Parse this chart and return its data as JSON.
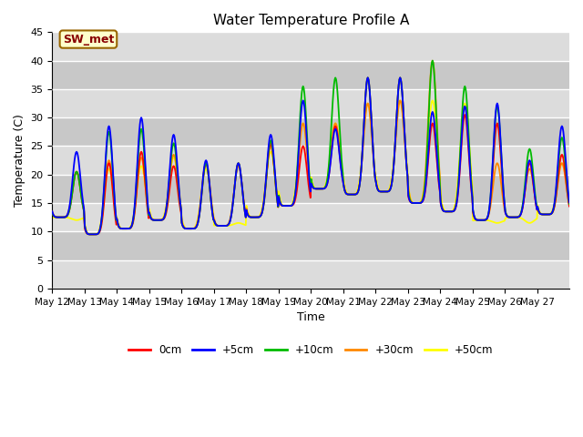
{
  "title": "Water Temperature Profile A",
  "xlabel": "Time",
  "ylabel": "Temperature (C)",
  "ylim": [
    0,
    45
  ],
  "yticks": [
    0,
    5,
    10,
    15,
    20,
    25,
    30,
    35,
    40,
    45
  ],
  "xtick_labels": [
    "May 12",
    "May 13",
    "May 14",
    "May 15",
    "May 16",
    "May 17",
    "May 18",
    "May 19",
    "May 20",
    "May 21",
    "May 22",
    "May 23",
    "May 24",
    "May 25",
    "May 26",
    "May 27"
  ],
  "annotation_text": "SW_met",
  "annotation_facecolor": "#FFFFCC",
  "annotation_edgecolor": "#996600",
  "annotation_textcolor": "#880000",
  "colors": {
    "0cm": "#FF0000",
    "+5cm": "#0000FF",
    "+10cm": "#00BB00",
    "+30cm": "#FF8800",
    "+50cm": "#FFFF00"
  },
  "bg_color": "#DCDCDC",
  "grid_color": "#FFFFFF",
  "line_width": 1.3,
  "peak_values": {
    "day_peaks_0cm": [
      20.5,
      22.0,
      24.0,
      21.5,
      22.0,
      22.0,
      25.5,
      25.0,
      28.5,
      37.0,
      37.0,
      29.0,
      30.5,
      29.0,
      22.0,
      23.5
    ],
    "day_peaks_5cm": [
      24.0,
      28.5,
      30.0,
      27.0,
      22.5,
      22.0,
      27.0,
      33.0,
      28.0,
      37.0,
      37.0,
      31.0,
      32.0,
      32.5,
      22.5,
      28.5
    ],
    "day_peaks_10cm": [
      20.5,
      27.5,
      28.0,
      25.5,
      22.0,
      22.0,
      26.0,
      35.5,
      37.0,
      37.0,
      37.0,
      40.0,
      35.5,
      32.0,
      24.5,
      26.5
    ],
    "day_peaks_30cm": [
      20.5,
      22.5,
      23.0,
      23.5,
      22.0,
      21.5,
      25.0,
      29.0,
      29.0,
      32.5,
      33.0,
      40.0,
      32.0,
      22.0,
      21.0,
      22.0
    ],
    "day_peaks_50cm": [
      12.0,
      21.0,
      21.5,
      23.0,
      21.0,
      11.5,
      24.0,
      29.0,
      29.0,
      32.5,
      33.0,
      33.0,
      32.5,
      11.5,
      11.5,
      22.0
    ],
    "day_troughs": [
      12.5,
      9.5,
      10.5,
      12.0,
      10.5,
      11.0,
      12.5,
      14.5,
      17.5,
      16.5,
      17.0,
      15.0,
      13.5,
      12.0,
      12.5,
      13.0
    ]
  }
}
